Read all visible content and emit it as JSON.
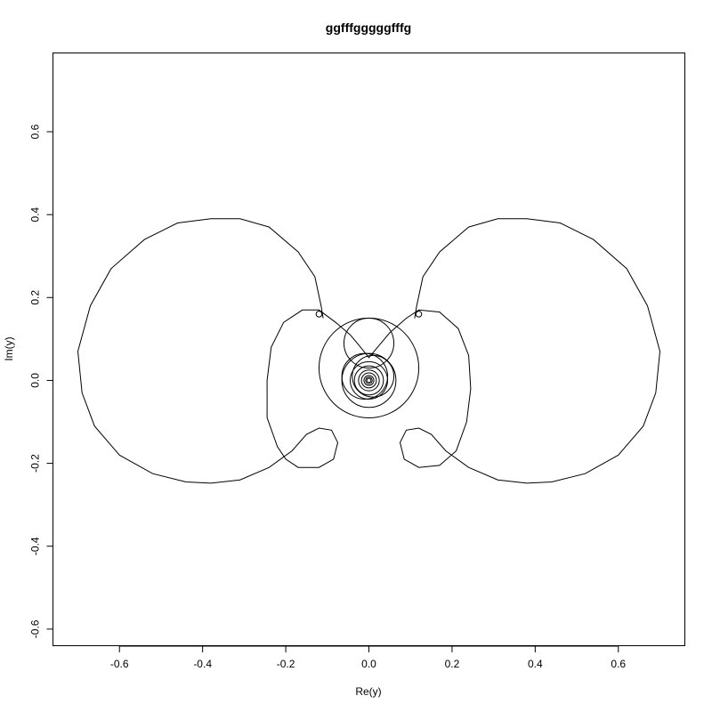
{
  "chart_data": {
    "type": "line",
    "title": "ggfffgggggfffg",
    "xlabel": "Re(y)",
    "ylabel": "Im(y)",
    "xlim": [
      -0.76,
      0.76
    ],
    "ylim": [
      -0.64,
      0.79
    ],
    "x_ticks": [
      -0.6,
      -0.4,
      -0.2,
      0.0,
      0.2,
      0.4,
      0.6
    ],
    "y_ticks": [
      -0.6,
      -0.4,
      -0.2,
      0.0,
      0.2,
      0.4,
      0.6
    ],
    "x_tick_labels": [
      "-0.6",
      "-0.4",
      "-0.2",
      "0.0",
      "0.2",
      "0.4",
      "0.6"
    ],
    "y_tick_labels": [
      "-0.6",
      "-0.4",
      "-0.2",
      "0.0",
      "0.2",
      "0.4",
      "0.6"
    ],
    "grid": false,
    "legend": "none",
    "line_color": "#000000",
    "series": [
      {
        "values_xy": [
          [
            -0.11,
            0.15
          ],
          [
            -0.115,
            0.18
          ],
          [
            -0.13,
            0.25
          ],
          [
            -0.17,
            0.31
          ],
          [
            -0.24,
            0.37
          ],
          [
            -0.31,
            0.39
          ],
          [
            -0.38,
            0.39
          ],
          [
            -0.46,
            0.38
          ],
          [
            -0.54,
            0.34
          ],
          [
            -0.62,
            0.27
          ],
          [
            -0.67,
            0.18
          ],
          [
            -0.7,
            0.07
          ],
          [
            -0.69,
            -0.03
          ],
          [
            -0.66,
            -0.11
          ],
          [
            -0.6,
            -0.18
          ],
          [
            -0.52,
            -0.225
          ],
          [
            -0.44,
            -0.245
          ],
          [
            -0.38,
            -0.248
          ],
          [
            -0.31,
            -0.24
          ],
          [
            -0.24,
            -0.21
          ],
          [
            -0.185,
            -0.17
          ],
          [
            -0.15,
            -0.13
          ],
          [
            -0.12,
            -0.115
          ],
          [
            -0.09,
            -0.12
          ],
          [
            -0.075,
            -0.15
          ],
          [
            -0.085,
            -0.19
          ],
          [
            -0.12,
            -0.21
          ],
          [
            -0.17,
            -0.21
          ],
          [
            -0.2,
            -0.19
          ],
          [
            -0.22,
            -0.16
          ],
          [
            -0.245,
            -0.09
          ],
          [
            -0.245,
            0.0
          ],
          [
            -0.235,
            0.08
          ],
          [
            -0.205,
            0.14
          ],
          [
            -0.16,
            0.17
          ],
          [
            -0.12,
            0.17
          ],
          [
            -0.08,
            0.14
          ],
          [
            -0.045,
            0.11
          ],
          [
            -0.02,
            0.08
          ],
          [
            0.0,
            0.055
          ],
          [
            0.025,
            0.085
          ],
          [
            0.05,
            0.115
          ],
          [
            0.09,
            0.15
          ],
          [
            0.12,
            0.17
          ],
          [
            0.17,
            0.165
          ],
          [
            0.215,
            0.125
          ],
          [
            0.24,
            0.06
          ],
          [
            0.245,
            -0.02
          ],
          [
            0.235,
            -0.1
          ],
          [
            0.21,
            -0.17
          ],
          [
            0.17,
            -0.205
          ],
          [
            0.12,
            -0.21
          ],
          [
            0.085,
            -0.19
          ],
          [
            0.075,
            -0.15
          ],
          [
            0.09,
            -0.12
          ],
          [
            0.12,
            -0.115
          ],
          [
            0.15,
            -0.13
          ],
          [
            0.185,
            -0.17
          ],
          [
            0.24,
            -0.21
          ],
          [
            0.31,
            -0.24
          ],
          [
            0.38,
            -0.248
          ],
          [
            0.44,
            -0.245
          ],
          [
            0.52,
            -0.225
          ],
          [
            0.6,
            -0.18
          ],
          [
            0.66,
            -0.11
          ],
          [
            0.69,
            -0.03
          ],
          [
            0.7,
            0.07
          ],
          [
            0.67,
            0.18
          ],
          [
            0.62,
            0.27
          ],
          [
            0.54,
            0.34
          ],
          [
            0.46,
            0.38
          ],
          [
            0.38,
            0.39
          ],
          [
            0.31,
            0.39
          ],
          [
            0.24,
            0.37
          ],
          [
            0.17,
            0.31
          ],
          [
            0.13,
            0.25
          ],
          [
            0.115,
            0.18
          ],
          [
            0.11,
            0.15
          ]
        ],
        "cusps_xy": [
          [
            -0.12,
            0.16
          ],
          [
            0.12,
            0.16
          ]
        ]
      },
      {
        "name": "inner-circle-large",
        "center": [
          0.0,
          0.03
        ],
        "radius": 0.12
      },
      {
        "name": "inner-circle-mid-upper",
        "center": [
          0.0,
          0.09
        ],
        "radius": 0.06
      },
      {
        "name": "inner-circles-nested",
        "center": [
          0.0,
          0.0
        ],
        "radii": [
          0.065,
          0.045,
          0.035,
          0.025,
          0.018,
          0.012,
          0.008,
          0.005
        ]
      },
      {
        "name": "inner-circle-offset-1",
        "center": [
          -0.01,
          0.01
        ],
        "radius": 0.055
      },
      {
        "name": "inner-circle-offset-2",
        "center": [
          0.01,
          0.01
        ],
        "radius": 0.05
      }
    ]
  }
}
